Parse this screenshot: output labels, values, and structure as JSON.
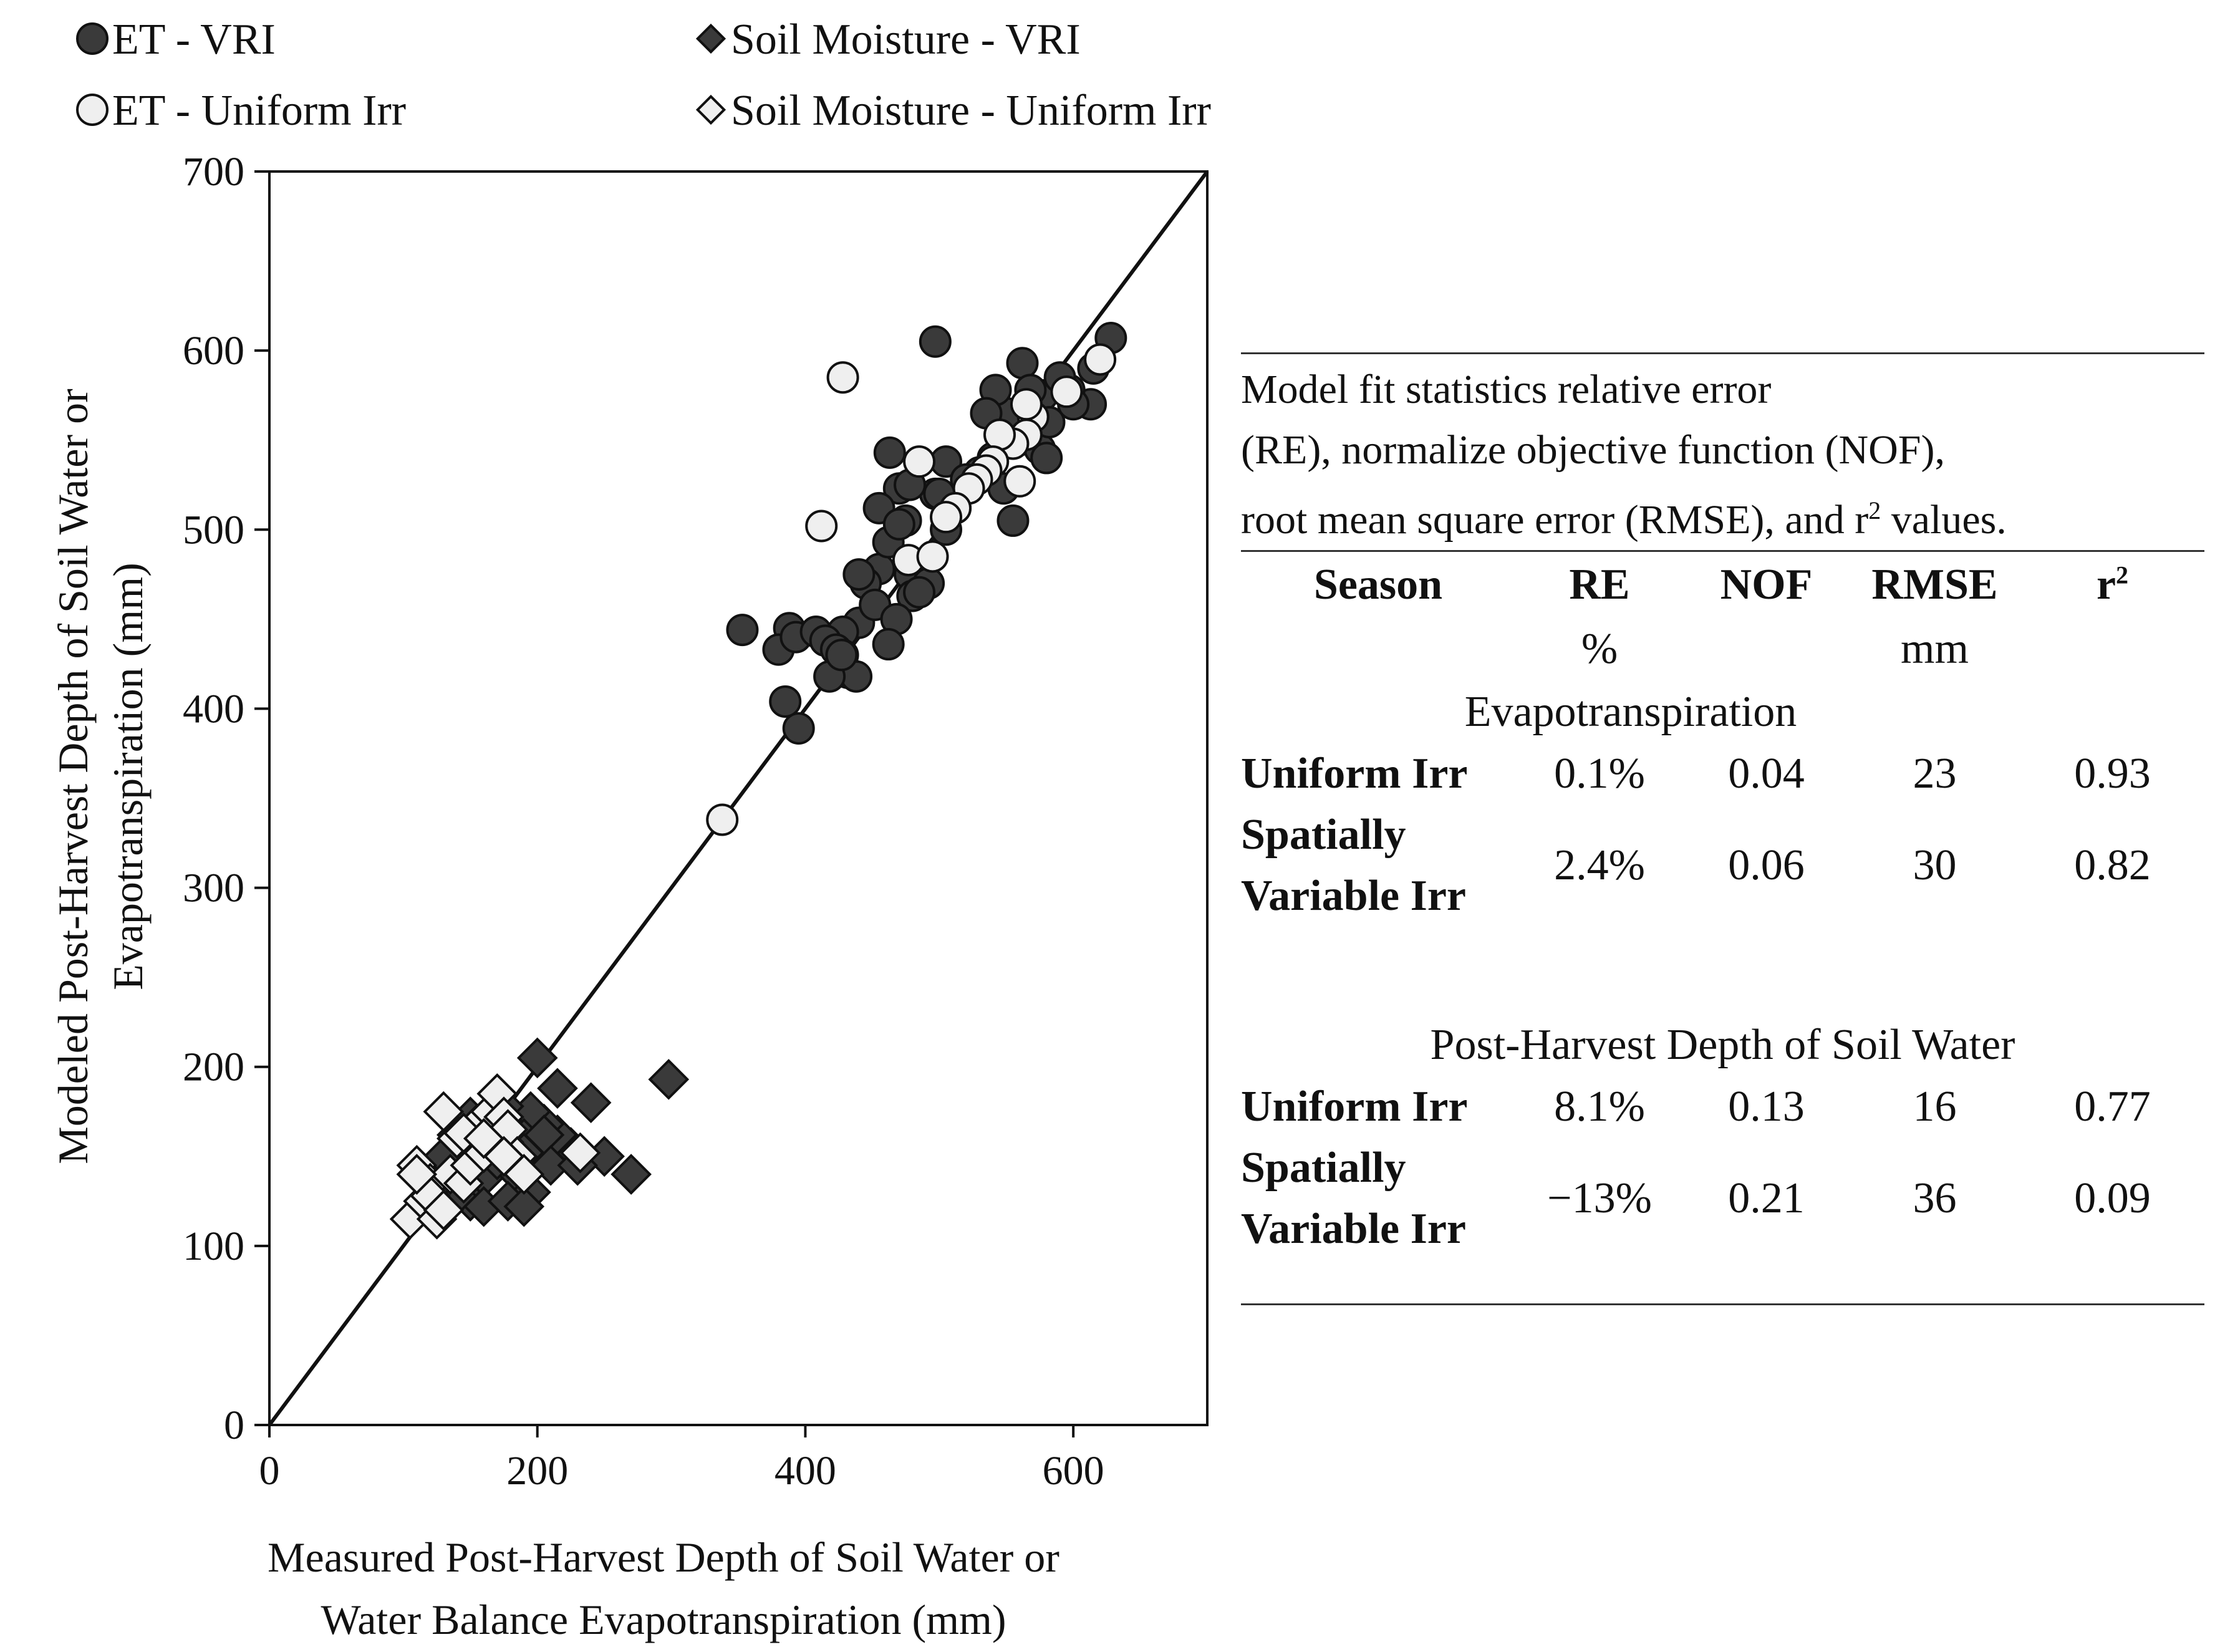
{
  "chart_data": {
    "type": "scatter",
    "title": "",
    "xlabel": [
      "Measured Post-Harvest Depth of Soil Water or",
      "Water Balance Evapotranspiration (mm)"
    ],
    "ylabel": [
      "Modeled Post-Harvest Depth of Soil Water or",
      "Evapotranspiration (mm)"
    ],
    "xlim": [
      0,
      700
    ],
    "ylim": [
      0,
      700
    ],
    "xticks": [
      0,
      200,
      400,
      600
    ],
    "yticks": [
      0,
      100,
      200,
      300,
      400,
      500,
      600,
      700
    ],
    "one_to_one_line": true,
    "legend": [
      "ET - VRI",
      "Soil Moisture - VRI",
      "ET -  Uniform Irr",
      "Soil Moisture - Uniform Irr"
    ],
    "series": [
      {
        "name": "ET - VRI",
        "marker": "circle",
        "fill": "#3a3a3a",
        "x": [
          497,
          628,
          613,
          615,
          597,
          577,
          562,
          568,
          550,
          542,
          535,
          560,
          575,
          582,
          600,
          590,
          463,
          505,
          497,
          470,
          455,
          455,
          445,
          440,
          475,
          462,
          478,
          492,
          480,
          452,
          468,
          485,
          462,
          470,
          440,
          428,
          388,
          380,
          393,
          408,
          415,
          423,
          428,
          432,
          438,
          418,
          427,
          385,
          395,
          353,
          530,
          520,
          512,
          505,
          540,
          548,
          555,
          580,
          478,
          500
        ],
        "y": [
          605,
          607,
          570,
          590,
          578,
          575,
          593,
          578,
          565,
          578,
          565,
          550,
          545,
          560,
          570,
          585,
          543,
          538,
          520,
          523,
          512,
          478,
          470,
          448,
          505,
          493,
          475,
          470,
          463,
          458,
          450,
          465,
          436,
          503,
          475,
          443,
          445,
          433,
          440,
          443,
          438,
          433,
          430,
          420,
          418,
          418,
          430,
          404,
          389,
          444,
          532,
          528,
          512,
          500,
          540,
          523,
          505,
          540,
          525,
          520
        ]
      },
      {
        "name": "ET -  Uniform Irr",
        "marker": "circle",
        "fill": "#efefef",
        "x": [
          428,
          412,
          338,
          485,
          477,
          620,
          595,
          570,
          565,
          560,
          555,
          545,
          540,
          535,
          528,
          522,
          512,
          505,
          495,
          565
        ],
        "y": [
          585,
          502,
          338,
          538,
          483,
          595,
          577,
          563,
          553,
          527,
          548,
          553,
          538,
          533,
          528,
          523,
          512,
          507,
          485,
          570
        ]
      },
      {
        "name": "Soil Moisture - VRI",
        "marker": "diamond",
        "fill": "#3a3a3a",
        "x": [
          200,
          298,
          215,
          240,
          270,
          250,
          225,
          215,
          205,
          195,
          190,
          175,
          165,
          150,
          140,
          155,
          180,
          185,
          195,
          160,
          170,
          150,
          140,
          125,
          135,
          145,
          160,
          178,
          190,
          205,
          210,
          190,
          175,
          165,
          150,
          140,
          130,
          160,
          230
        ],
        "y": [
          205,
          193,
          188,
          180,
          140,
          150,
          155,
          162,
          168,
          175,
          160,
          178,
          170,
          162,
          155,
          145,
          150,
          140,
          130,
          138,
          148,
          125,
          128,
          135,
          140,
          150,
          122,
          125,
          122,
          162,
          145,
          152,
          158,
          165,
          172,
          162,
          150,
          155,
          145
        ]
      },
      {
        "name": "Soil Moisture - Uniform Irr",
        "marker": "diamond",
        "fill": "#efefef",
        "x": [
          105,
          110,
          115,
          120,
          125,
          130,
          135,
          140,
          145,
          150,
          155,
          160,
          165,
          170,
          175,
          178,
          185,
          190,
          232,
          120,
          130,
          145,
          110,
          160,
          175
        ],
        "y": [
          115,
          145,
          125,
          135,
          115,
          175,
          140,
          160,
          135,
          145,
          168,
          152,
          175,
          185,
          172,
          165,
          150,
          140,
          152,
          128,
          120,
          163,
          140,
          160,
          150
        ]
      }
    ]
  },
  "legend": {
    "et_vri": "ET - VRI",
    "soil_vri": "Soil Moisture - VRI",
    "et_uniform": "ET -  Uniform Irr",
    "soil_uniform": "Soil Moisture - Uniform Irr"
  },
  "stats_table": {
    "caption_lines": [
      "Model fit statistics relative error",
      "(RE), normalize objective function (NOF),",
      "root mean square error (RMSE), and r"
    ],
    "caption_sup": "2",
    "caption_end": " values.",
    "headers": {
      "season": "Season",
      "re": "RE",
      "nof": "NOF",
      "rmse": "RMSE",
      "r2_base": "r",
      "r2_sup": "2"
    },
    "units": {
      "re": "%",
      "rmse": "mm"
    },
    "sections": [
      {
        "title": "Evapotranspiration",
        "rows": [
          {
            "season": "Uniform Irr",
            "re": "0.1%",
            "nof": "0.04",
            "rmse": "23",
            "r2": "0.93"
          },
          {
            "season_line1": "Spatially",
            "season_line2": "Variable Irr",
            "re": "2.4%",
            "nof": "0.06",
            "rmse": "30",
            "r2": "0.82"
          }
        ]
      },
      {
        "title": "Post-Harvest  Depth of Soil Water",
        "rows": [
          {
            "season": "Uniform Irr",
            "re": "8.1%",
            "nof": "0.13",
            "rmse": "16",
            "r2": "0.77"
          },
          {
            "season_line1": "Spatially",
            "season_line2": "Variable Irr",
            "re": "−13%",
            "nof": "0.21",
            "rmse": "36",
            "r2": "0.09"
          }
        ]
      }
    ]
  },
  "colors": {
    "dark_marker": "#3a3a3a",
    "light_marker": "#efefef",
    "axis": "#111111"
  }
}
